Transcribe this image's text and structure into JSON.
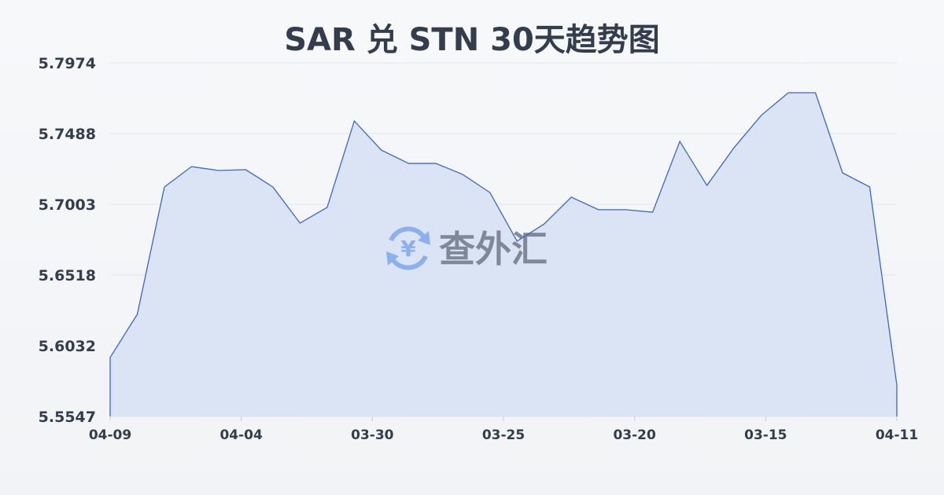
{
  "chart_data": {
    "type": "area",
    "title": "SAR 兑 STN 30天趋势图",
    "xlabel": "",
    "ylabel": "",
    "ylim": [
      5.5547,
      5.7974
    ],
    "yticks": [
      "5.7974",
      "5.7488",
      "5.7003",
      "5.6518",
      "5.6032",
      "5.5547"
    ],
    "xticks": [
      "04-09",
      "04-04",
      "03-30",
      "03-25",
      "03-20",
      "03-15",
      "04-11"
    ],
    "grid": true,
    "values": [
      5.5952,
      5.6248,
      5.7122,
      5.7262,
      5.7235,
      5.7241,
      5.7122,
      5.6874,
      5.6982,
      5.7575,
      5.7375,
      5.7284,
      5.7284,
      5.7208,
      5.7084,
      5.675,
      5.6868,
      5.7052,
      5.6966,
      5.6966,
      5.6949,
      5.7435,
      5.7133,
      5.7392,
      5.7613,
      5.7769,
      5.7769,
      5.7219,
      5.7122,
      5.5763
    ],
    "colors": {
      "line": "#3a66cc",
      "fill": "#d6e0f5",
      "grid": "#e3e6ea",
      "text": "#333d4d"
    }
  },
  "watermark": {
    "text": "查外汇",
    "icon": "yen-exchange-icon"
  }
}
